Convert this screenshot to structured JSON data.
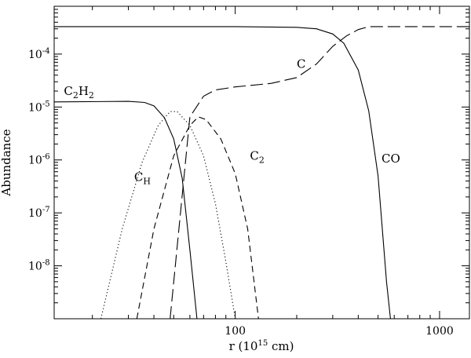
{
  "chart_data": {
    "type": "line",
    "xlabel": "r (10^15 cm)",
    "ylabel": "Abundance",
    "xscale": "log",
    "yscale": "log",
    "xlim": [
      13,
      1400
    ],
    "ylim": [
      1e-09,
      0.0008
    ],
    "x_tick_labels": [
      {
        "value": 100,
        "label": "100"
      },
      {
        "value": 1000,
        "label": "1000"
      }
    ],
    "y_tick_labels": [
      {
        "value": 0.0001,
        "base": "10",
        "exp": "-4"
      },
      {
        "value": 1e-05,
        "base": "10",
        "exp": "-5"
      },
      {
        "value": 1e-06,
        "base": "10",
        "exp": "-6"
      },
      {
        "value": 1e-07,
        "base": "10",
        "exp": "-7"
      },
      {
        "value": 1e-08,
        "base": "10",
        "exp": "-8"
      }
    ],
    "series": [
      {
        "name": "CO",
        "style": "solid",
        "label": {
          "text": "CO",
          "sub": "",
          "x": 520,
          "y": 9e-07
        },
        "points": [
          [
            13,
            0.00033
          ],
          [
            100,
            0.00033
          ],
          [
            200,
            0.00032
          ],
          [
            250,
            0.0003
          ],
          [
            300,
            0.00024
          ],
          [
            340,
            0.00016
          ],
          [
            400,
            5e-05
          ],
          [
            450,
            8.5e-06
          ],
          [
            500,
            5e-07
          ],
          [
            550,
            5e-09
          ],
          [
            575,
            1e-09
          ]
        ]
      },
      {
        "name": "C",
        "style": "longdash",
        "label": {
          "text": "C",
          "sub": "",
          "x": 200,
          "y": 5.5e-05
        },
        "points": [
          [
            48,
            1e-09
          ],
          [
            60,
            6.5e-06
          ],
          [
            70,
            1.6e-05
          ],
          [
            80,
            2.1e-05
          ],
          [
            100,
            2.4e-05
          ],
          [
            150,
            2.8e-05
          ],
          [
            200,
            3.6e-05
          ],
          [
            250,
            6.5e-05
          ],
          [
            300,
            0.00014
          ],
          [
            350,
            0.00022
          ],
          [
            400,
            0.00029
          ],
          [
            450,
            0.00033
          ],
          [
            1400,
            0.00033
          ]
        ]
      },
      {
        "name": "C2H2",
        "style": "solid",
        "label": {
          "text": "C",
          "sub": "2",
          "text2": "H",
          "sub2": "2",
          "x": 14.5,
          "y": 1.7e-05
        },
        "points": [
          [
            13,
            1.25e-05
          ],
          [
            30,
            1.28e-05
          ],
          [
            36,
            1.22e-05
          ],
          [
            40,
            1.05e-05
          ],
          [
            45,
            6.3e-06
          ],
          [
            50,
            2.5e-06
          ],
          [
            55,
            4.5e-07
          ],
          [
            60,
            2e-08
          ],
          [
            65,
            1e-09
          ]
        ]
      },
      {
        "name": "C2H",
        "style": "dotted",
        "label": {
          "text": "C",
          "sub": "H",
          "x": 32,
          "y": 4e-07
        },
        "points": [
          [
            22,
            1e-09
          ],
          [
            28,
            5e-08
          ],
          [
            35,
            9e-07
          ],
          [
            42,
            4.5e-06
          ],
          [
            48,
            8.2e-06
          ],
          [
            52,
            8.2e-06
          ],
          [
            60,
            4.5e-06
          ],
          [
            70,
            1.2e-06
          ],
          [
            80,
            1.5e-07
          ],
          [
            90,
            1.2e-08
          ],
          [
            100,
            1e-09
          ]
        ]
      },
      {
        "name": "C2",
        "style": "dashed",
        "label": {
          "text": "C",
          "sub": "2",
          "x": 118,
          "y": 1e-06
        },
        "points": [
          [
            33,
            1e-09
          ],
          [
            40,
            5e-08
          ],
          [
            50,
            1.2e-06
          ],
          [
            60,
            4.5e-06
          ],
          [
            66,
            6.5e-06
          ],
          [
            72,
            5.8e-06
          ],
          [
            85,
            2.5e-06
          ],
          [
            100,
            5.5e-07
          ],
          [
            115,
            5e-08
          ],
          [
            130,
            1e-09
          ]
        ]
      }
    ]
  }
}
